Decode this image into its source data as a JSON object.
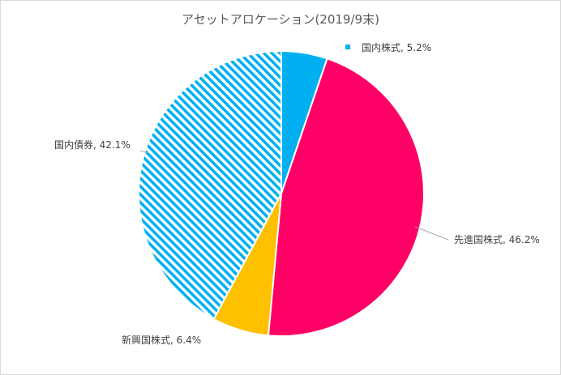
{
  "chart_data": {
    "type": "pie",
    "title": "アセットアロケーション(2019/9末)",
    "slices": [
      {
        "label": "国内株式",
        "value": 5.2,
        "display": "国内株式, 5.2%",
        "color": "#00b0f0",
        "pattern": "solid"
      },
      {
        "label": "先進国株式",
        "value": 46.2,
        "display": "先進国株式, 46.2%",
        "color": "#ff0066",
        "pattern": "solid"
      },
      {
        "label": "新興国株式",
        "value": 6.4,
        "display": "新興国株式, 6.4%",
        "color": "#ffc000",
        "pattern": "solid"
      },
      {
        "label": "国内債券",
        "value": 42.1,
        "display": "国内債券, 42.1%",
        "color": "#00b0f0",
        "pattern": "diagonal-stripes"
      }
    ],
    "start_angle": "12 o'clock",
    "direction": "clockwise",
    "legend": "none",
    "slice_border_color": "#ffffff"
  }
}
